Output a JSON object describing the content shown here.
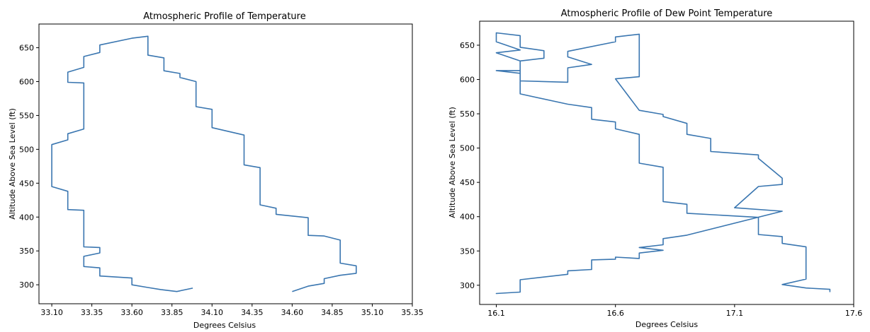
{
  "chart_data": [
    {
      "type": "line",
      "title": "Atmospheric Profile of Temperature",
      "xlabel": "Degrees Celsius",
      "ylabel": "Altitude Above Sea Level (ft)",
      "xlim": [
        33.02,
        35.35
      ],
      "ylim": [
        272,
        685
      ],
      "xticks": [
        "33.10",
        "33.35",
        "33.60",
        "33.85",
        "34.10",
        "34.35",
        "34.60",
        "34.85",
        "35.10",
        "35.35"
      ],
      "yticks": [
        "300",
        "350",
        "400",
        "450",
        "500",
        "550",
        "600",
        "650"
      ],
      "series": [
        {
          "name": "",
          "x": [
            33.98,
            33.88,
            33.78,
            33.7,
            33.6,
            33.6,
            33.4,
            33.4,
            33.3,
            33.3,
            33.4,
            33.4,
            33.3,
            33.3,
            33.3,
            33.2,
            33.2,
            33.1,
            33.1,
            33.2,
            33.2,
            33.3,
            33.3,
            33.3,
            33.2,
            33.2,
            33.3,
            33.3,
            33.4,
            33.4,
            33.6,
            33.7,
            33.7,
            33.8,
            33.8,
            33.9,
            33.9,
            34.0,
            34.0,
            34.1,
            34.1,
            34.3,
            34.3,
            34.4,
            34.4,
            34.5,
            34.5,
            34.7,
            34.7,
            34.8,
            34.9,
            34.9,
            35.0,
            35.0,
            34.9,
            34.8,
            34.8,
            34.7,
            34.6
          ],
          "y": [
            295,
            290,
            293,
            296,
            300,
            310,
            313,
            325,
            327,
            342,
            347,
            355,
            356,
            405,
            410,
            411,
            438,
            445,
            507,
            514,
            523,
            530,
            592,
            598,
            599,
            614,
            621,
            637,
            643,
            654,
            664,
            667,
            639,
            635,
            616,
            612,
            606,
            600,
            563,
            559,
            532,
            521,
            477,
            473,
            418,
            413,
            404,
            399,
            373,
            372,
            366,
            332,
            328,
            317,
            314,
            309,
            302,
            298,
            290
          ]
        }
      ]
    },
    {
      "type": "line",
      "title": "Atmospheric Profile of Dew Point Temperature",
      "xlabel": "Degrees Celsius",
      "ylabel": "Altitude Above Sea Level (ft)",
      "xlim": [
        16.03,
        17.6
      ],
      "ylim": [
        272,
        685
      ],
      "xticks": [
        "16.1",
        "16.6",
        "17.1",
        "17.6"
      ],
      "yticks": [
        "300",
        "350",
        "400",
        "450",
        "500",
        "550",
        "600",
        "650"
      ],
      "series": [
        {
          "name": "",
          "x": [
            17.5,
            17.5,
            17.4,
            17.3,
            17.4,
            17.4,
            17.3,
            17.3,
            17.2,
            17.2,
            16.9,
            16.9,
            16.8,
            16.8,
            16.7,
            16.7,
            16.6,
            16.6,
            16.5,
            16.5,
            16.4,
            16.2,
            16.2,
            16.1,
            16.2,
            16.2,
            16.3,
            16.3,
            16.2,
            16.2,
            16.2,
            16.1,
            16.1,
            16.2,
            16.1,
            16.2,
            16.2,
            16.4,
            16.4,
            16.4,
            16.5,
            16.4,
            16.4,
            16.6,
            16.6,
            16.7,
            16.7,
            16.6,
            16.7,
            16.8,
            16.8,
            16.9,
            16.9,
            17.0,
            17.0,
            17.2,
            17.2,
            17.3,
            17.3,
            17.2,
            17.1,
            17.3,
            16.9,
            16.8,
            16.8,
            16.7,
            16.8,
            16.7,
            16.7,
            16.6,
            16.6,
            16.5,
            16.5,
            16.4,
            16.4,
            16.2,
            16.2,
            16.1,
            16.2,
            16.2
          ],
          "y": [
            290,
            294,
            296,
            301,
            309,
            356,
            361,
            371,
            374,
            399,
            405,
            418,
            422,
            472,
            478,
            520,
            528,
            538,
            542,
            559,
            564,
            579,
            609,
            613,
            613,
            627,
            631,
            642,
            647,
            656,
            664,
            668,
            655,
            643,
            639,
            627,
            598,
            596,
            606,
            617,
            622,
            633,
            641,
            655,
            662,
            666,
            604,
            601,
            555,
            549,
            546,
            536,
            520,
            514,
            495,
            490,
            485,
            456,
            447,
            444,
            413,
            408,
            373,
            368,
            359,
            355,
            351,
            347,
            339,
            341,
            338,
            337,
            323,
            321,
            316,
            308,
            290,
            288,
            290,
            293
          ]
        }
      ]
    }
  ]
}
